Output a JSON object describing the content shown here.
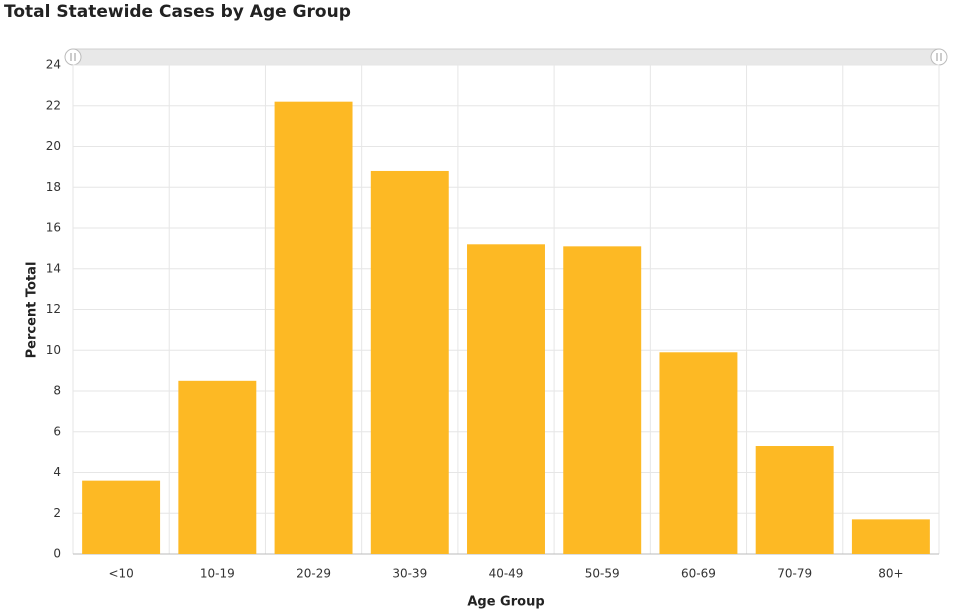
{
  "chart_data": {
    "type": "bar",
    "title": "Total Statewide Cases by Age Group",
    "x_label": "Age Group",
    "y_label": "Percent Total",
    "categories": [
      "<10",
      "10-19",
      "20-29",
      "30-39",
      "40-49",
      "50-59",
      "60-69",
      "70-79",
      "80+"
    ],
    "values": [
      3.6,
      8.5,
      22.2,
      18.8,
      15.2,
      15.1,
      9.9,
      5.3,
      1.7
    ],
    "color": "#fdb924",
    "ylim": [
      0,
      24
    ],
    "yticks": [
      0,
      2,
      4,
      6,
      8,
      10,
      12,
      14,
      16,
      18,
      20,
      22,
      24
    ],
    "grid": true
  }
}
